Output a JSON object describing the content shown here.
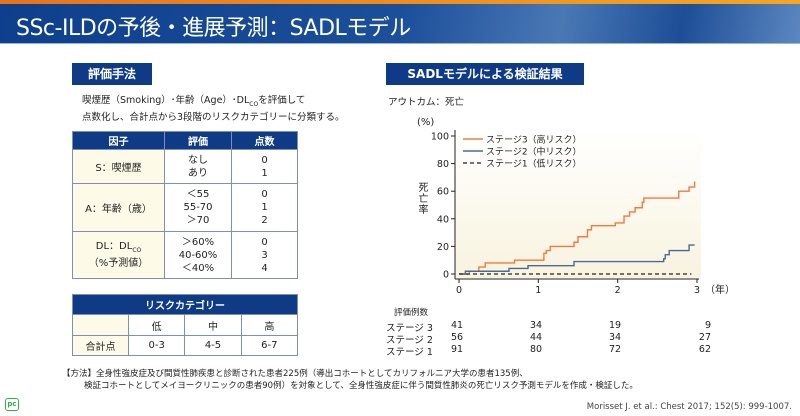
{
  "header": {
    "title": "SSc-ILDの予後・進展予測：SADLモデル"
  },
  "left": {
    "section_label": "評価手法",
    "desc_line1": "喫煙歴（Smoking）･年齢（Age）･DL",
    "desc_sub": "CO",
    "desc_line1_end": "を評価して",
    "desc_line2": "点数化し、合計点から3段階のリスクカテゴリーに分類する。",
    "factor_table": {
      "headers": [
        "因子",
        "評価",
        "点数"
      ],
      "rows": [
        {
          "factor": "S：喫煙歴",
          "evals": [
            "なし",
            "あり"
          ],
          "points": [
            "0",
            "1"
          ]
        },
        {
          "factor": "A：年齢（歳）",
          "evals": [
            "＜55",
            "55-70",
            "＞70"
          ],
          "points": [
            "0",
            "1",
            "2"
          ]
        },
        {
          "factor": "DL：DL",
          "factor_sub": "CO",
          "factor_line2": "（%予測値）",
          "evals": [
            "＞60%",
            "40-60%",
            "＜40%"
          ],
          "points": [
            "0",
            "3",
            "4"
          ]
        }
      ]
    },
    "risk_table": {
      "title": "リスクカテゴリー",
      "columns": [
        "低",
        "中",
        "高"
      ],
      "row_label": "合計点",
      "values": [
        "0-3",
        "4-5",
        "6-7"
      ]
    }
  },
  "right": {
    "section_label": "SADLモデルによる検証結果",
    "outcome": "アウトカム：死亡",
    "risk_header": "評価例数",
    "risk_rows": [
      {
        "label": "ステージ 3",
        "values": [
          "41",
          "34",
          "19",
          "9"
        ]
      },
      {
        "label": "ステージ 2",
        "values": [
          "56",
          "44",
          "34",
          "27"
        ]
      },
      {
        "label": "ステージ 1",
        "values": [
          "91",
          "80",
          "72",
          "62"
        ]
      }
    ]
  },
  "chart_data": {
    "type": "line",
    "step": true,
    "ylabel": "死亡率",
    "yunit": "(%)",
    "xunit": "（年）",
    "xlim": [
      0,
      3
    ],
    "ylim": [
      0,
      100
    ],
    "xticks": [
      "0",
      "1",
      "2",
      "3"
    ],
    "yticks": [
      "0",
      "20",
      "40",
      "60",
      "80",
      "100"
    ],
    "legend_position": "top-left",
    "series": [
      {
        "name": "ステージ3（高リスク）",
        "color": "#f07b3a",
        "dash": false,
        "points": [
          [
            0,
            0
          ],
          [
            0.13,
            2
          ],
          [
            0.25,
            5
          ],
          [
            0.33,
            8
          ],
          [
            0.7,
            10
          ],
          [
            1.07,
            15
          ],
          [
            1.1,
            17
          ],
          [
            1.15,
            20
          ],
          [
            1.45,
            23
          ],
          [
            1.5,
            27
          ],
          [
            1.62,
            32
          ],
          [
            1.67,
            35
          ],
          [
            1.97,
            37
          ],
          [
            2.08,
            42
          ],
          [
            2.15,
            45
          ],
          [
            2.22,
            48
          ],
          [
            2.31,
            52
          ],
          [
            2.33,
            55
          ],
          [
            2.77,
            60
          ],
          [
            2.9,
            63
          ],
          [
            2.97,
            67
          ]
        ]
      },
      {
        "name": "ステージ2（中リスク）",
        "color": "#4a6a96",
        "dash": false,
        "points": [
          [
            0,
            0
          ],
          [
            0.08,
            2
          ],
          [
            0.63,
            4
          ],
          [
            0.87,
            6
          ],
          [
            1.45,
            9
          ],
          [
            2.58,
            11
          ],
          [
            2.6,
            14
          ],
          [
            2.65,
            17
          ],
          [
            2.9,
            21
          ],
          [
            2.97,
            21
          ]
        ]
      },
      {
        "name": "ステージ1（低リスク）",
        "color": "#444444",
        "dash": true,
        "points": [
          [
            0,
            0
          ],
          [
            0.2,
            0
          ],
          [
            2.93,
            0
          ]
        ]
      }
    ]
  },
  "footer": {
    "method_line1": "【方法】全身性強皮症及び間質性肺疾患と診断された患者225例（導出コホートとしてカリフォルニア大学の患者135例、",
    "method_line2": "検証コホートとしてメイヨークリニックの患者90例）を対象として、全身性強皮症に伴う間質性肺炎の死亡リスク予測モデルを作成・検証した。",
    "citation": "Morisset J. et al.: Chest 2017; 152(5): 999-1007.",
    "logo": "PC"
  }
}
